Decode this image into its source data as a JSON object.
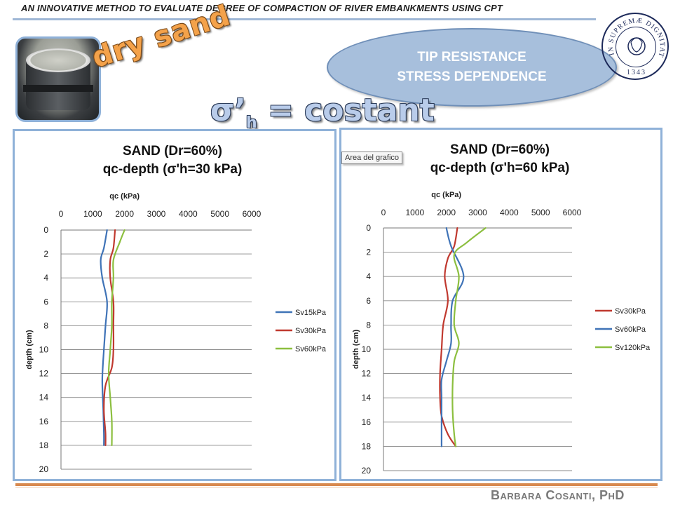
{
  "header": {
    "title": "AN INNOVATIVE METHOD TO EVALUATE DEGREE OF COMPACTION OF RIVER  EMBANKMENTS USING CPT"
  },
  "photo_label": "dry sand",
  "badge": {
    "line1": "TIP RESISTANCE",
    "line2": "STRESS DEPENDENCE"
  },
  "main_heading": {
    "prefix": "σ’",
    "sub": "h",
    "suffix": " = costant"
  },
  "seal": {
    "text": "IN SUPREMÆ DIGNITATIS",
    "year": "1343"
  },
  "tooltip": "Area del grafico",
  "author": "Barbara Cosanti, PhD",
  "colors": {
    "blue": "#3f73b7",
    "red": "#c0392f",
    "green": "#8cbf3f",
    "accent": "#8fb1d8"
  },
  "chart_data": [
    {
      "type": "line",
      "title_line1": "SAND (Dr=60%)",
      "title_line2": "qc-depth (σ'h=30 kPa)",
      "xlabel": "qc (kPa)",
      "ylabel": "depth (cm)",
      "xlim": [
        0,
        6000
      ],
      "ylim": [
        0,
        20
      ],
      "x_ticks": [
        0,
        1000,
        2000,
        3000,
        4000,
        5000,
        6000
      ],
      "y_ticks": [
        0,
        2,
        4,
        6,
        8,
        10,
        12,
        14,
        16,
        18,
        20
      ],
      "grid": true,
      "legend_position": "right",
      "series": [
        {
          "name": "Sv15kPa",
          "color": "#3f73b7",
          "points": [
            [
              1450,
              0
            ],
            [
              1350,
              1.5
            ],
            [
              1250,
              2.5
            ],
            [
              1300,
              4
            ],
            [
              1450,
              6
            ],
            [
              1400,
              8
            ],
            [
              1350,
              10
            ],
            [
              1300,
              12.5
            ],
            [
              1330,
              15
            ],
            [
              1350,
              17
            ],
            [
              1350,
              18
            ]
          ]
        },
        {
          "name": "Sv30kPa",
          "color": "#c0392f",
          "points": [
            [
              1700,
              0
            ],
            [
              1650,
              1.5
            ],
            [
              1550,
              2.5
            ],
            [
              1550,
              4
            ],
            [
              1650,
              6
            ],
            [
              1650,
              8
            ],
            [
              1650,
              10
            ],
            [
              1600,
              11.5
            ],
            [
              1400,
              13
            ],
            [
              1350,
              15
            ],
            [
              1400,
              17
            ],
            [
              1400,
              18
            ]
          ]
        },
        {
          "name": "Sv60kPa",
          "color": "#8cbf3f",
          "points": [
            [
              2000,
              0
            ],
            [
              1850,
              1
            ],
            [
              1650,
              2.5
            ],
            [
              1650,
              4
            ],
            [
              1600,
              6
            ],
            [
              1600,
              8
            ],
            [
              1550,
              10
            ],
            [
              1500,
              12
            ],
            [
              1550,
              14
            ],
            [
              1600,
              16
            ],
            [
              1600,
              18
            ]
          ]
        }
      ]
    },
    {
      "type": "line",
      "title_line1": "SAND (Dr=60%)",
      "title_line2": "qc-depth (σ'h=60 kPa)",
      "xlabel": "qc (kPa)",
      "ylabel": "depth (cm)",
      "xlim": [
        0,
        6000
      ],
      "ylim": [
        0,
        20
      ],
      "x_ticks": [
        0,
        1000,
        2000,
        3000,
        4000,
        5000,
        6000
      ],
      "y_ticks": [
        0,
        2,
        4,
        6,
        8,
        10,
        12,
        14,
        16,
        18,
        20
      ],
      "grid": true,
      "legend_position": "right",
      "series": [
        {
          "name": "Sv30kPa",
          "color": "#c0392f",
          "points": [
            [
              2350,
              0
            ],
            [
              2250,
              1.5
            ],
            [
              2050,
              2.5
            ],
            [
              1950,
              4
            ],
            [
              2050,
              6
            ],
            [
              1900,
              8
            ],
            [
              1850,
              10
            ],
            [
              1800,
              12
            ],
            [
              1800,
              14
            ],
            [
              1850,
              15.5
            ],
            [
              2050,
              17
            ],
            [
              2300,
              18
            ]
          ]
        },
        {
          "name": "Sv60kPa",
          "color": "#3f73b7",
          "points": [
            [
              2000,
              0
            ],
            [
              2150,
              1.5
            ],
            [
              2550,
              4
            ],
            [
              2200,
              6
            ],
            [
              2150,
              8
            ],
            [
              2150,
              9.5
            ],
            [
              2000,
              11
            ],
            [
              1850,
              12.5
            ],
            [
              1850,
              14
            ],
            [
              1850,
              16
            ],
            [
              1850,
              18
            ]
          ]
        },
        {
          "name": "Sv120kPa",
          "color": "#8cbf3f",
          "points": [
            [
              3250,
              0
            ],
            [
              2650,
              1.2
            ],
            [
              2250,
              2.2
            ],
            [
              2400,
              4
            ],
            [
              2300,
              6
            ],
            [
              2250,
              8
            ],
            [
              2400,
              9.5
            ],
            [
              2250,
              11
            ],
            [
              2200,
              13
            ],
            [
              2200,
              15
            ],
            [
              2250,
              17
            ],
            [
              2300,
              18
            ]
          ]
        }
      ]
    }
  ]
}
